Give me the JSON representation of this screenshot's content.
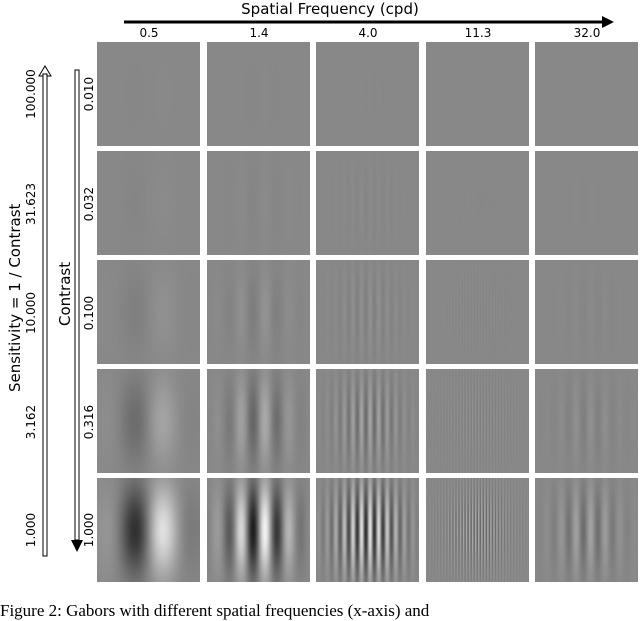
{
  "figure": {
    "x_axis_title": "Spatial Frequency (cpd)",
    "x_ticks": [
      "0.5",
      "1.4",
      "4.0",
      "11.3",
      "32.0"
    ],
    "sensitivity_axis_title": "Sensitivity = 1 / Contrast",
    "sensitivity_ticks": [
      "1.000",
      "3.162",
      "10.000",
      "31.623",
      "100.000"
    ],
    "contrast_axis_title": "Contrast",
    "contrast_ticks": [
      "0.010",
      "0.032",
      "0.100",
      "0.316",
      "1.000"
    ],
    "spatial_frequencies": [
      0.5,
      1.4,
      4.0,
      11.3,
      32.0
    ],
    "contrasts": [
      0.01,
      0.032,
      0.1,
      0.316,
      1.0
    ],
    "background_gray": "#888888"
  },
  "caption": "Figure 2: Gabors with different spatial frequencies (x-axis) and"
}
